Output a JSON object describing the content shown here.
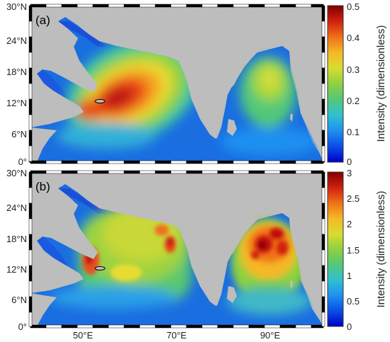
{
  "figure": {
    "panels": [
      {
        "tag": "(a)",
        "y_ticks": [
          "30°N",
          "24°N",
          "18°N",
          "12°N",
          "6°N",
          "0°"
        ],
        "colorbar": {
          "title": "Intensity (dimensionless)",
          "ticks": [
            "0.5",
            "0.4",
            "0.3",
            "0.2",
            "0.1",
            "0"
          ],
          "range": [
            0,
            0.5
          ]
        }
      },
      {
        "tag": "(b)",
        "y_ticks": [
          "30°N",
          "24°N",
          "18°N",
          "12°N",
          "6°N",
          "0°"
        ],
        "x_ticks": [
          "50°E",
          "70°E",
          "90°E"
        ],
        "colorbar": {
          "title": "Intensity (dimensionless)",
          "ticks": [
            "3",
            "2.5",
            "2",
            "1.5",
            "1",
            "0.5",
            "0"
          ],
          "range": [
            0,
            3
          ]
        }
      }
    ],
    "colors": {
      "land": "#bdbdbd",
      "colormap": [
        "#0000c8",
        "#1e6ef0",
        "#35b0e0",
        "#5cc86a",
        "#a8d838",
        "#f5dc30",
        "#f5a020",
        "#e84418",
        "#c01010",
        "#800000"
      ]
    }
  }
}
